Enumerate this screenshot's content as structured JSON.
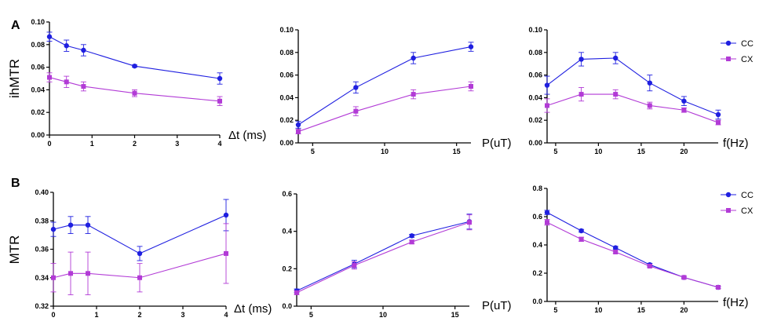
{
  "panel_labels": [
    "A",
    "B"
  ],
  "colors": {
    "cc": "#1f1fe0",
    "cx": "#b23bd6"
  },
  "chart_data": [
    {
      "type": "line",
      "id": "A1",
      "ylabel": "ihMTR",
      "xlabel": "Δt (ms)",
      "xlim": [
        0,
        4
      ],
      "ylim": [
        0,
        0.1
      ],
      "xticks": [
        0,
        1,
        2,
        3,
        4
      ],
      "xtick_labels": [
        "0",
        "1",
        "2",
        "3",
        "4"
      ],
      "yticks": [
        0,
        0.02,
        0.04,
        0.06,
        0.08,
        0.1
      ],
      "ytick_labels": [
        "0.00",
        "0.02",
        "0.04",
        "0.06",
        "0.08",
        "0.10"
      ],
      "x": [
        0,
        0.4,
        0.8,
        2,
        4
      ],
      "series": [
        {
          "name": "CC",
          "values": [
            0.087,
            0.079,
            0.075,
            0.061,
            0.05
          ],
          "errors": [
            0.004,
            0.005,
            0.005,
            0.001,
            0.005
          ]
        },
        {
          "name": "CX",
          "values": [
            0.051,
            0.047,
            0.043,
            0.037,
            0.03
          ],
          "errors": [
            0.004,
            0.005,
            0.004,
            0.003,
            0.004
          ]
        }
      ]
    },
    {
      "type": "line",
      "id": "A2",
      "ylabel": "",
      "xlabel": "P(uT)",
      "xlim": [
        4,
        16
      ],
      "ylim": [
        0,
        0.1
      ],
      "xticks": [
        5,
        10,
        15
      ],
      "xtick_labels": [
        "5",
        "10",
        "15"
      ],
      "yticks": [
        0,
        0.02,
        0.04,
        0.06,
        0.08,
        0.1
      ],
      "ytick_labels": [
        "0.00",
        "0.02",
        "0.04",
        "0.06",
        "0.08",
        "0.10"
      ],
      "x": [
        4,
        8,
        12,
        16
      ],
      "series": [
        {
          "name": "CC",
          "values": [
            0.016,
            0.049,
            0.075,
            0.085
          ],
          "errors": [
            0.003,
            0.005,
            0.005,
            0.004
          ]
        },
        {
          "name": "CX",
          "values": [
            0.01,
            0.028,
            0.043,
            0.05
          ],
          "errors": [
            0.002,
            0.004,
            0.004,
            0.004
          ]
        }
      ]
    },
    {
      "type": "line",
      "id": "A3",
      "ylabel": "",
      "xlabel": "f(Hz)",
      "xlim": [
        4,
        24
      ],
      "ylim": [
        0,
        0.1
      ],
      "xticks": [
        5,
        10,
        15,
        20
      ],
      "xtick_labels": [
        "5",
        "10",
        "15",
        "20"
      ],
      "yticks": [
        0,
        0.02,
        0.04,
        0.06,
        0.08,
        0.1
      ],
      "ytick_labels": [
        "0.00",
        "0.02",
        "0.04",
        "0.06",
        "0.08",
        "0.10"
      ],
      "x": [
        4,
        8,
        12,
        16,
        20,
        24
      ],
      "series": [
        {
          "name": "CC",
          "values": [
            0.051,
            0.074,
            0.075,
            0.053,
            0.037,
            0.025
          ],
          "errors": [
            0.008,
            0.006,
            0.005,
            0.007,
            0.004,
            0.004
          ]
        },
        {
          "name": "CX",
          "values": [
            0.033,
            0.043,
            0.043,
            0.033,
            0.029,
            0.018
          ],
          "errors": [
            0.006,
            0.006,
            0.004,
            0.003,
            0.002,
            0.002
          ]
        }
      ],
      "legend": [
        "CC",
        "CX"
      ]
    },
    {
      "type": "line",
      "id": "B1",
      "ylabel": "MTR",
      "xlabel": "Δt (ms)",
      "xlim": [
        0,
        4
      ],
      "ylim": [
        0.32,
        0.4
      ],
      "xticks": [
        0,
        1,
        2,
        3,
        4
      ],
      "xtick_labels": [
        "0",
        "1",
        "2",
        "3",
        "4"
      ],
      "yticks": [
        0.32,
        0.34,
        0.36,
        0.38,
        0.4
      ],
      "ytick_labels": [
        "0.32",
        "0.34",
        "0.36",
        "0.38",
        "0.40"
      ],
      "x": [
        0,
        0.4,
        0.8,
        2,
        4
      ],
      "series": [
        {
          "name": "CC",
          "values": [
            0.374,
            0.377,
            0.377,
            0.357,
            0.384
          ],
          "errors": [
            0.005,
            0.006,
            0.006,
            0.005,
            0.011
          ]
        },
        {
          "name": "CX",
          "values": [
            0.34,
            0.343,
            0.343,
            0.34,
            0.357
          ],
          "errors": [
            0.01,
            0.015,
            0.015,
            0.01,
            0.021
          ]
        }
      ]
    },
    {
      "type": "line",
      "id": "B2",
      "ylabel": "",
      "xlabel": "P(uT)",
      "xlim": [
        4,
        16
      ],
      "ylim": [
        0,
        0.6
      ],
      "xticks": [
        5,
        10,
        15
      ],
      "xtick_labels": [
        "5",
        "10",
        "15"
      ],
      "yticks": [
        0,
        0.2,
        0.4,
        0.6
      ],
      "ytick_labels": [
        "0.0",
        "0.2",
        "0.4",
        "0.6"
      ],
      "x": [
        4,
        8,
        12,
        16
      ],
      "series": [
        {
          "name": "CC",
          "values": [
            0.082,
            0.225,
            0.376,
            0.452
          ],
          "errors": [
            0.01,
            0.02,
            0.008,
            0.04
          ]
        },
        {
          "name": "CX",
          "values": [
            0.072,
            0.218,
            0.343,
            0.448
          ],
          "errors": [
            0.01,
            0.02,
            0.01,
            0.04
          ]
        }
      ]
    },
    {
      "type": "line",
      "id": "B3",
      "ylabel": "",
      "xlabel": "f(Hz)",
      "xlim": [
        4,
        24
      ],
      "ylim": [
        0,
        0.8
      ],
      "xticks": [
        5,
        10,
        15,
        20
      ],
      "xtick_labels": [
        "5",
        "10",
        "15",
        "20"
      ],
      "yticks": [
        0,
        0.2,
        0.4,
        0.6,
        0.8
      ],
      "ytick_labels": [
        "0.0",
        "0.2",
        "0.4",
        "0.6",
        "0.8"
      ],
      "x": [
        4,
        8,
        12,
        16,
        20,
        24
      ],
      "series": [
        {
          "name": "CC",
          "values": [
            0.63,
            0.5,
            0.38,
            0.26,
            0.17,
            0.1
          ],
          "errors": [
            0.015,
            0.01,
            0.01,
            0.01,
            0.008,
            0.008
          ]
        },
        {
          "name": "CX",
          "values": [
            0.56,
            0.44,
            0.35,
            0.25,
            0.17,
            0.1
          ],
          "errors": [
            0.02,
            0.015,
            0.01,
            0.01,
            0.008,
            0.008
          ]
        }
      ],
      "legend": [
        "CC",
        "CX"
      ]
    }
  ]
}
